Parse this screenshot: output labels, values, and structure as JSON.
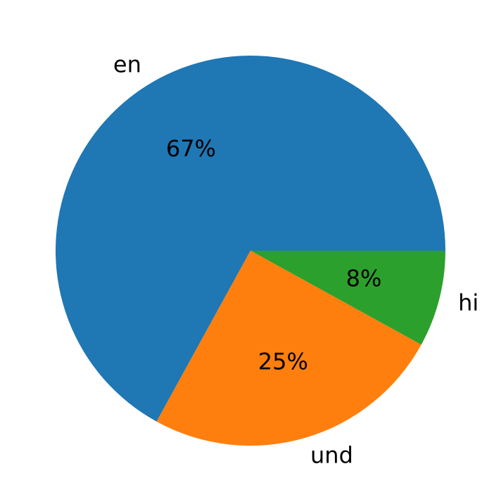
{
  "chart_data": {
    "type": "pie",
    "categories": [
      "en",
      "und",
      "hi"
    ],
    "values": [
      67,
      25,
      8
    ],
    "value_labels": [
      "67%",
      "25%",
      "8%"
    ],
    "colors": [
      "#1f77b4",
      "#ff7f0e",
      "#2ca02c"
    ]
  }
}
